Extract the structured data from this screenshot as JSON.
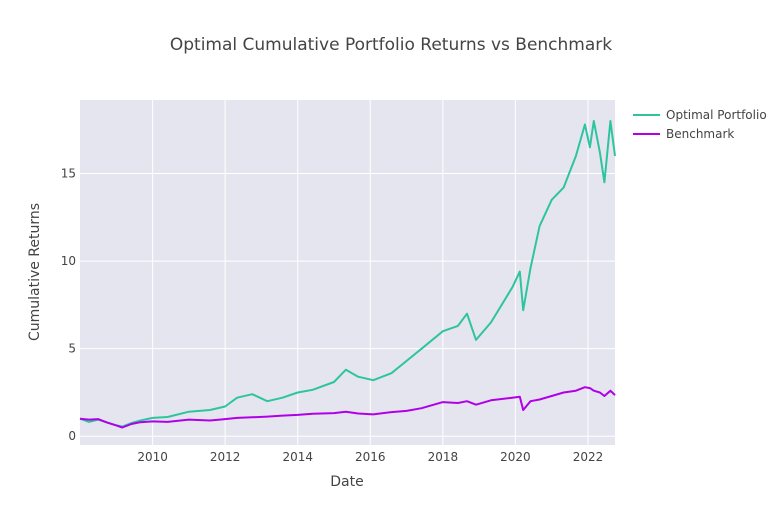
{
  "chart_data": {
    "type": "line",
    "title": "Optimal Cumulative Portfolio Returns vs Benchmark",
    "xlabel": "Date",
    "ylabel": "Cumulative Returns",
    "x_ticks": [
      "2010",
      "2012",
      "2014",
      "2016",
      "2018",
      "2020",
      "2022"
    ],
    "y_ticks": [
      "0",
      "5",
      "10",
      "15"
    ],
    "xlim": [
      "2008-01-01",
      "2022-09-30"
    ],
    "ylim": [
      -0.5,
      19.2
    ],
    "grid": true,
    "legend_position": "top-right outside",
    "plot_background": "#e5e5f0",
    "x": [
      "2008-01-01",
      "2008-04-01",
      "2008-07-01",
      "2008-10-01",
      "2009-01-01",
      "2009-03-01",
      "2009-06-01",
      "2009-09-01",
      "2010-01-01",
      "2010-06-01",
      "2011-01-01",
      "2011-08-01",
      "2012-01-01",
      "2012-05-01",
      "2012-10-01",
      "2013-03-01",
      "2013-08-01",
      "2014-01-01",
      "2014-06-01",
      "2015-01-01",
      "2015-05-01",
      "2015-09-01",
      "2016-02-01",
      "2016-08-01",
      "2017-01-01",
      "2017-06-01",
      "2018-01-01",
      "2018-06-01",
      "2018-09-01",
      "2018-12-01",
      "2019-05-01",
      "2019-12-01",
      "2020-02-15",
      "2020-03-20",
      "2020-06-01",
      "2020-09-01",
      "2021-01-01",
      "2021-05-01",
      "2021-09-01",
      "2021-12-01",
      "2022-01-20",
      "2022-03-01",
      "2022-05-01",
      "2022-06-15",
      "2022-08-15",
      "2022-09-30"
    ],
    "series": [
      {
        "name": "Optimal Portfolio",
        "color": "#2ec49e",
        "values": [
          1.0,
          0.82,
          0.95,
          0.78,
          0.62,
          0.55,
          0.75,
          0.9,
          1.05,
          1.1,
          1.4,
          1.5,
          1.7,
          2.2,
          2.4,
          2.0,
          2.2,
          2.5,
          2.65,
          3.1,
          3.8,
          3.4,
          3.2,
          3.6,
          4.3,
          5.0,
          6.0,
          6.3,
          7.0,
          5.5,
          6.5,
          8.5,
          9.4,
          7.2,
          9.6,
          12.0,
          13.5,
          14.2,
          16.0,
          17.8,
          16.5,
          18.0,
          16.2,
          14.5,
          18.0,
          16.0
        ]
      },
      {
        "name": "Benchmark",
        "color": "#b000e8",
        "values": [
          1.0,
          0.95,
          0.98,
          0.78,
          0.62,
          0.5,
          0.7,
          0.8,
          0.85,
          0.82,
          0.95,
          0.9,
          0.98,
          1.05,
          1.08,
          1.12,
          1.18,
          1.22,
          1.28,
          1.32,
          1.4,
          1.3,
          1.25,
          1.38,
          1.45,
          1.6,
          1.95,
          1.9,
          2.0,
          1.8,
          2.05,
          2.2,
          2.25,
          1.5,
          2.0,
          2.1,
          2.3,
          2.5,
          2.6,
          2.8,
          2.75,
          2.6,
          2.5,
          2.3,
          2.6,
          2.35
        ]
      }
    ]
  }
}
